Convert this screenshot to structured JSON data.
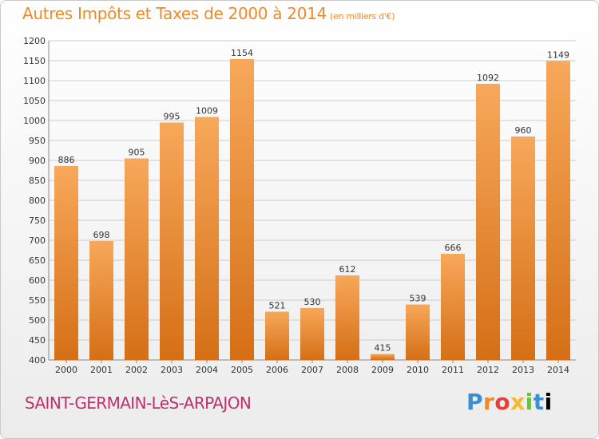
{
  "header": {
    "title": "Autres Impôts et Taxes de 2000 à 2014",
    "unit": "(en milliers d'€)"
  },
  "footer": {
    "commune": "SAINT-GERMAIN-LèS-ARPAJON",
    "logo_text": "Proxiti"
  },
  "colors": {
    "bar_top": "#f7a85a",
    "bar_bottom": "#d56f16",
    "title": "#ee8a26",
    "commune": "#c0306b",
    "grid": "#cccccc"
  },
  "chart_data": {
    "type": "bar",
    "title": "Autres Impôts et Taxes de 2000 à 2014",
    "subtitle": "(en milliers d'€)",
    "xlabel": "",
    "ylabel": "",
    "categories": [
      "2000",
      "2001",
      "2002",
      "2003",
      "2004",
      "2005",
      "2006",
      "2007",
      "2008",
      "2009",
      "2010",
      "2011",
      "2012",
      "2013",
      "2014"
    ],
    "values": [
      886,
      698,
      905,
      995,
      1009,
      1154,
      521,
      530,
      612,
      415,
      539,
      666,
      1092,
      960,
      1149
    ],
    "ylim": [
      400,
      1200
    ],
    "yticks": [
      400,
      450,
      500,
      550,
      600,
      650,
      700,
      750,
      800,
      850,
      900,
      950,
      1000,
      1050,
      1100,
      1150,
      1200
    ],
    "grid": true,
    "legend": "none"
  }
}
